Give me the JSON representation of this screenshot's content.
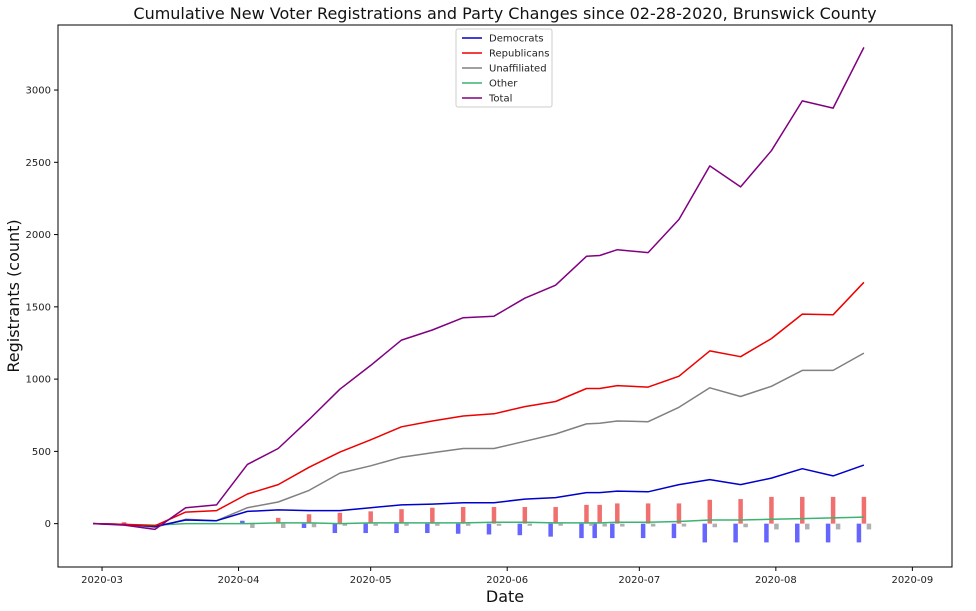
{
  "chart_data": {
    "type": "line",
    "title": "Cumulative New Voter Registrations and Party Changes since 02-28-2020, Brunswick County",
    "xlabel": "Date",
    "ylabel": "Registrants (count)",
    "xlim": [
      "2020-02-20",
      "2020-09-10"
    ],
    "ylim": [
      -300,
      3450
    ],
    "grid": false,
    "legend_position": "top-center",
    "x_ticks": [
      "2020-03",
      "2020-04",
      "2020-05",
      "2020-06",
      "2020-07",
      "2020-08",
      "2020-09"
    ],
    "x_tick_dates": [
      "2020-03-01",
      "2020-04-01",
      "2020-05-01",
      "2020-06-01",
      "2020-07-01",
      "2020-08-01",
      "2020-09-01"
    ],
    "y_ticks": [
      0,
      500,
      1000,
      1500,
      2000,
      2500,
      3000
    ],
    "x": [
      "2020-02-28",
      "2020-03-06",
      "2020-03-13",
      "2020-03-20",
      "2020-03-27",
      "2020-04-03",
      "2020-04-10",
      "2020-04-17",
      "2020-04-24",
      "2020-05-01",
      "2020-05-08",
      "2020-05-15",
      "2020-05-22",
      "2020-05-29",
      "2020-06-05",
      "2020-06-12",
      "2020-06-19",
      "2020-06-22",
      "2020-06-26",
      "2020-07-03",
      "2020-07-10",
      "2020-07-17",
      "2020-07-24",
      "2020-07-31",
      "2020-08-07",
      "2020-08-14",
      "2020-08-21"
    ],
    "series": [
      {
        "name": "Democrats",
        "color": "#0000cc",
        "values": [
          0,
          -5,
          -20,
          25,
          20,
          85,
          95,
          90,
          90,
          110,
          130,
          135,
          145,
          145,
          170,
          180,
          215,
          215,
          225,
          220,
          270,
          305,
          270,
          315,
          380,
          330,
          405
        ]
      },
      {
        "name": "Republicans",
        "color": "#ee0000",
        "values": [
          0,
          -5,
          -15,
          80,
          90,
          205,
          270,
          390,
          495,
          580,
          670,
          710,
          745,
          760,
          810,
          845,
          935,
          935,
          955,
          945,
          1020,
          1195,
          1155,
          1280,
          1450,
          1445,
          1670
        ]
      },
      {
        "name": "Unaffiliated",
        "color": "#808080",
        "values": [
          0,
          -5,
          -25,
          30,
          20,
          110,
          150,
          230,
          350,
          400,
          460,
          490,
          520,
          520,
          570,
          620,
          690,
          695,
          710,
          705,
          805,
          940,
          880,
          950,
          1060,
          1060,
          1180
        ]
      },
      {
        "name": "Other",
        "color": "#3cb371",
        "values": [
          0,
          -5,
          -10,
          0,
          0,
          0,
          5,
          5,
          0,
          5,
          5,
          5,
          5,
          10,
          10,
          5,
          5,
          5,
          10,
          10,
          15,
          25,
          25,
          30,
          35,
          40,
          45
        ]
      },
      {
        "name": "Total",
        "color": "#800080",
        "values": [
          0,
          -10,
          -40,
          110,
          130,
          410,
          520,
          720,
          930,
          1095,
          1270,
          1340,
          1425,
          1435,
          1560,
          1650,
          1850,
          1855,
          1895,
          1875,
          2105,
          2475,
          2330,
          2580,
          2925,
          2875,
          3295
        ]
      }
    ],
    "change_bars": {
      "x": [
        "2020-03-06",
        "2020-04-03",
        "2020-04-10",
        "2020-04-17",
        "2020-04-24",
        "2020-05-01",
        "2020-05-08",
        "2020-05-15",
        "2020-05-22",
        "2020-05-29",
        "2020-06-05",
        "2020-06-12",
        "2020-06-19",
        "2020-06-22",
        "2020-06-26",
        "2020-07-03",
        "2020-07-10",
        "2020-07-17",
        "2020-07-24",
        "2020-07-31",
        "2020-08-07",
        "2020-08-14",
        "2020-08-21"
      ],
      "series": [
        {
          "color": "#6666ff",
          "values": [
            0,
            20,
            0,
            -30,
            -65,
            -65,
            -65,
            -65,
            -70,
            -75,
            -80,
            -90,
            -100,
            -100,
            -100,
            -100,
            -100,
            -130,
            -130,
            -130,
            -130,
            -130,
            -130
          ]
        },
        {
          "color": "#f07070",
          "values": [
            10,
            0,
            40,
            65,
            75,
            85,
            100,
            110,
            115,
            115,
            115,
            115,
            130,
            130,
            140,
            140,
            140,
            165,
            170,
            185,
            185,
            185,
            185
          ]
        },
        {
          "color": "#b0b0b0",
          "values": [
            0,
            -30,
            -30,
            -25,
            -15,
            -15,
            -15,
            -15,
            -15,
            -15,
            -15,
            -15,
            -15,
            -20,
            -20,
            -20,
            -20,
            -25,
            -25,
            -40,
            -40,
            -40,
            -40
          ]
        }
      ]
    }
  }
}
